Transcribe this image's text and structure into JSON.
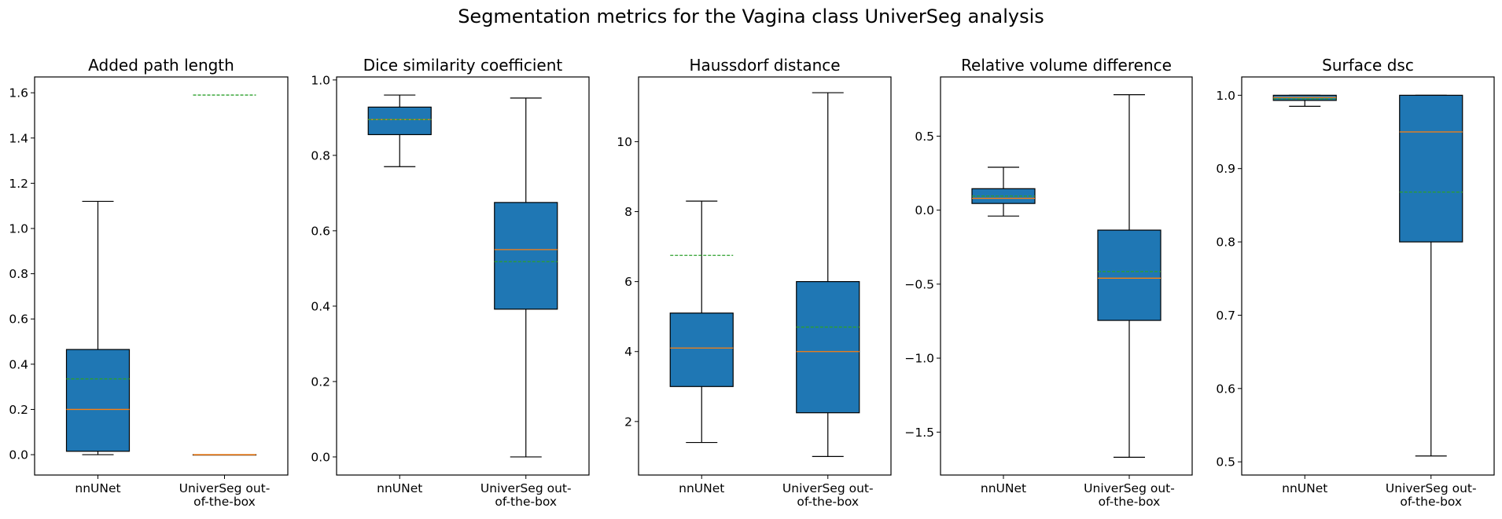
{
  "figure": {
    "title": "Segmentation metrics for the Vagina class UniverSeg analysis"
  },
  "colors": {
    "box_fill": "#1f77b4",
    "median": "#ff7f0e",
    "mean": "#2ca02c"
  },
  "chart_data": [
    {
      "type": "box",
      "title": "Added path length",
      "categories": [
        "nnUNet",
        "UniverSeg out-\nof-the-box"
      ],
      "ylim": [
        -0.09,
        1.67
      ],
      "yticks": [
        0.0,
        0.2,
        0.4,
        0.6,
        0.8,
        1.0,
        1.2,
        1.4,
        1.6
      ],
      "boxes": [
        {
          "whislo": 0.0,
          "q1": 0.015,
          "med": 0.2,
          "q3": 0.465,
          "whishi": 1.12,
          "mean": 0.335
        },
        {
          "whislo": 0.0,
          "q1": 0.0,
          "med": 0.0,
          "q3": 0.0,
          "whishi": 0.0,
          "mean": 1.59
        }
      ]
    },
    {
      "type": "box",
      "title": "Dice similarity coefficient",
      "categories": [
        "nnUNet",
        "UniverSeg out-\nof-the-box"
      ],
      "ylim": [
        -0.048,
        1.008
      ],
      "yticks": [
        0.0,
        0.2,
        0.4,
        0.6,
        0.8,
        1.0
      ],
      "boxes": [
        {
          "whislo": 0.77,
          "q1": 0.855,
          "med": 0.895,
          "q3": 0.928,
          "whishi": 0.96,
          "mean": 0.895
        },
        {
          "whislo": 0.0,
          "q1": 0.392,
          "med": 0.55,
          "q3": 0.675,
          "whishi": 0.952,
          "mean": 0.518
        }
      ]
    },
    {
      "type": "box",
      "title": "Haussdorf distance",
      "categories": [
        "nnUNet",
        "UniverSeg out-\nof-the-box"
      ],
      "ylim": [
        0.47,
        11.85
      ],
      "yticks": [
        2,
        4,
        6,
        8,
        10
      ],
      "boxes": [
        {
          "whislo": 1.4,
          "q1": 3.0,
          "med": 4.1,
          "q3": 5.1,
          "whishi": 8.3,
          "mean": 6.75
        },
        {
          "whislo": 1.0,
          "q1": 2.25,
          "med": 4.0,
          "q3": 6.0,
          "whishi": 11.4,
          "mean": 4.7
        }
      ]
    },
    {
      "type": "box",
      "title": "Relative volume difference",
      "categories": [
        "nnUNet",
        "UniverSeg out-\nof-the-box"
      ],
      "ylim": [
        -1.79,
        0.9
      ],
      "yticks": [
        -1.5,
        -1.0,
        -0.5,
        0.0,
        0.5
      ],
      "ytick_labels": [
        "−1.5",
        "−1.0",
        "−0.5",
        "0.0",
        "0.5"
      ],
      "boxes": [
        {
          "whislo": -0.04,
          "q1": 0.045,
          "med": 0.08,
          "q3": 0.145,
          "whishi": 0.29,
          "mean": 0.095
        },
        {
          "whislo": -1.67,
          "q1": -0.745,
          "med": -0.46,
          "q3": -0.135,
          "whishi": 0.78,
          "mean": -0.415
        }
      ]
    },
    {
      "type": "box",
      "title": "Surface dsc",
      "categories": [
        "nnUNet",
        "UniverSeg out-\nof-the-box"
      ],
      "ylim": [
        0.482,
        1.025
      ],
      "yticks": [
        0.5,
        0.6,
        0.7,
        0.8,
        0.9,
        1.0
      ],
      "boxes": [
        {
          "whislo": 0.985,
          "q1": 0.993,
          "med": 0.997,
          "q3": 1.0,
          "whishi": 1.0,
          "mean": 0.995
        },
        {
          "whislo": 0.508,
          "q1": 0.8,
          "med": 0.95,
          "q3": 1.0,
          "whishi": 1.0,
          "mean": 0.868
        }
      ]
    }
  ]
}
